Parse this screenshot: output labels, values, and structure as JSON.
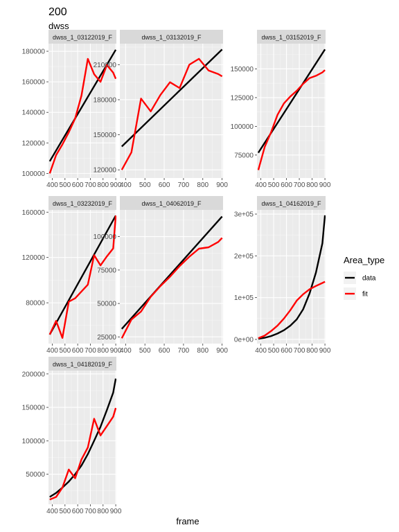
{
  "chart_data": {
    "type": "line",
    "title": "200",
    "subtitle": "dwss",
    "xlabel": "frame",
    "ylabel": "",
    "legend": {
      "title": "Area_type",
      "placement": "right",
      "entries": [
        {
          "name": "data",
          "color": "#000000"
        },
        {
          "name": "fit",
          "color": "#ff0000"
        }
      ]
    },
    "grid": true,
    "x_ticks": [
      400,
      500,
      600,
      700,
      800,
      900
    ],
    "x_tick_labels": [
      "400",
      "500",
      "600",
      "700",
      "800",
      "900"
    ],
    "panels": [
      {
        "strip": "dwss_1_03122019_F",
        "xlim": [
          370,
          905
        ],
        "ylim": [
          97000,
          185000
        ],
        "y_ticks": [
          100000,
          120000,
          140000,
          160000,
          180000
        ],
        "y_tick_labels": [
          "100000",
          "120000",
          "140000",
          "160000",
          "180000"
        ],
        "series": [
          {
            "name": "data",
            "x": [
              380,
              900
            ],
            "y": [
              108000,
              181000
            ]
          },
          {
            "name": "fit",
            "x": [
              380,
              430,
              480,
              530,
              580,
              630,
              680,
              730,
              780,
              830,
              880,
              900
            ],
            "y": [
              100000,
              112000,
              119000,
              127000,
              136000,
              151000,
              175000,
              165000,
              160000,
              171000,
              166000,
              162000
            ]
          }
        ]
      },
      {
        "strip": "dwss_1_03132019_F",
        "xlim": [
          370,
          905
        ],
        "ylim": [
          113000,
          228000
        ],
        "y_ticks": [
          120000,
          150000,
          180000,
          210000
        ],
        "y_tick_labels": [
          "120000",
          "150000",
          "180000",
          "210000"
        ],
        "series": [
          {
            "name": "data",
            "x": [
              380,
              900
            ],
            "y": [
              140000,
              223000
            ]
          },
          {
            "name": "fit",
            "x": [
              380,
              430,
              480,
              530,
              580,
              630,
              680,
              730,
              780,
              830,
              880,
              900
            ],
            "y": [
              120000,
              135000,
              181000,
              170000,
              184000,
              195000,
              190000,
              210000,
              215000,
              205000,
              202000,
              200000
            ]
          }
        ]
      },
      {
        "strip": "dwss_1_03152019_F",
        "xlim": [
          370,
          905
        ],
        "ylim": [
          55000,
          172000
        ],
        "y_ticks": [
          75000,
          100000,
          125000,
          150000
        ],
        "y_tick_labels": [
          "75000",
          "100000",
          "125000",
          "150000"
        ],
        "series": [
          {
            "name": "data",
            "x": [
              380,
              900
            ],
            "y": [
              77000,
              167000
            ]
          },
          {
            "name": "fit",
            "x": [
              380,
              430,
              480,
              530,
              580,
              630,
              680,
              730,
              780,
              830,
              880,
              900
            ],
            "y": [
              62000,
              82000,
              95000,
              110000,
              120000,
              126000,
              131000,
              137000,
              142000,
              144000,
              147000,
              149000
            ]
          }
        ]
      },
      {
        "strip": "dwss_1_03232019_F",
        "xlim": [
          370,
          905
        ],
        "ylim": [
          44000,
          162000
        ],
        "y_ticks": [
          80000,
          120000,
          160000
        ],
        "y_tick_labels": [
          "80000",
          "120000",
          "160000"
        ],
        "series": [
          {
            "name": "data",
            "x": [
              380,
              900
            ],
            "y": [
              52000,
              157000
            ]
          },
          {
            "name": "fit",
            "x": [
              380,
              430,
              480,
              530,
              580,
              630,
              680,
              730,
              780,
              830,
              880,
              900
            ],
            "y": [
              52000,
              64000,
              49000,
              81000,
              84000,
              90000,
              96000,
              122000,
              113000,
              121000,
              128000,
              157000
            ]
          }
        ]
      },
      {
        "strip": "dwss_1_04062019_F",
        "xlim": [
          370,
          905
        ],
        "ylim": [
          20000,
          120000
        ],
        "y_ticks": [
          25000,
          50000,
          75000,
          100000
        ],
        "y_tick_labels": [
          "25000",
          "50000",
          "75000",
          "100000"
        ],
        "series": [
          {
            "name": "data",
            "x": [
              380,
              900
            ],
            "y": [
              31000,
              115000
            ]
          },
          {
            "name": "fit",
            "x": [
              380,
              430,
              480,
              530,
              580,
              630,
              680,
              730,
              780,
              830,
              880,
              900
            ],
            "y": [
              24000,
              38000,
              44000,
              55000,
              63000,
              70000,
              78000,
              85000,
              91000,
              92000,
              96000,
              99000
            ]
          }
        ]
      },
      {
        "strip": "dwss_1_04162019_F",
        "xlim": [
          370,
          905
        ],
        "ylim": [
          -10000,
          310000
        ],
        "y_ticks": [
          0,
          100000,
          200000,
          300000
        ],
        "y_tick_labels": [
          "0e+00",
          "1e+05",
          "2e+05",
          "3e+05"
        ],
        "series": [
          {
            "name": "data",
            "x": [
              380,
              430,
              480,
              530,
              580,
              630,
              680,
              730,
              780,
              830,
              880,
              900
            ],
            "y": [
              1500,
              4000,
              8000,
              14000,
              22000,
              33000,
              48000,
              72000,
              110000,
              160000,
              230000,
              297000
            ]
          },
          {
            "name": "fit",
            "x": [
              380,
              430,
              480,
              530,
              580,
              630,
              680,
              730,
              780,
              830,
              880,
              900
            ],
            "y": [
              3000,
              9000,
              20000,
              33000,
              50000,
              70000,
              93000,
              108000,
              120000,
              128000,
              135000,
              138000
            ]
          }
        ]
      },
      {
        "strip": "dwss_1_04182019_F",
        "xlim": [
          370,
          905
        ],
        "ylim": [
          5000,
          205000
        ],
        "y_ticks": [
          50000,
          100000,
          150000,
          200000
        ],
        "y_tick_labels": [
          "50000",
          "100000",
          "150000",
          "200000"
        ],
        "series": [
          {
            "name": "data",
            "x": [
              380,
              430,
              480,
              530,
              580,
              630,
              680,
              730,
              780,
              830,
              880,
              900
            ],
            "y": [
              16000,
              22000,
              30000,
              39000,
              50000,
              63000,
              80000,
              100000,
              121000,
              146000,
              172000,
              193000
            ]
          },
          {
            "name": "fit",
            "x": [
              380,
              430,
              480,
              530,
              580,
              630,
              680,
              730,
              780,
              830,
              880,
              900
            ],
            "y": [
              12000,
              16000,
              30000,
              57000,
              44000,
              72000,
              90000,
              133000,
              108000,
              122000,
              136000,
              149000
            ]
          }
        ]
      }
    ]
  }
}
